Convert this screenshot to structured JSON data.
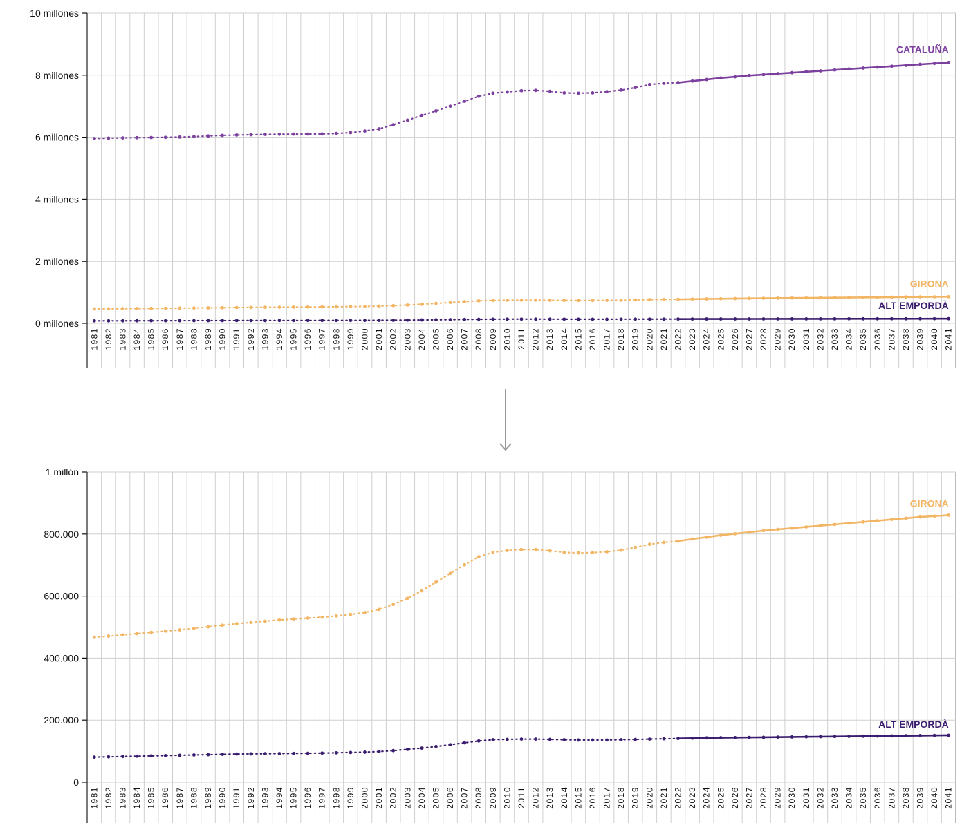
{
  "chart_data": [
    {
      "type": "line",
      "title": "",
      "xlabel": "",
      "ylabel": "",
      "ylim": [
        0,
        10000000
      ],
      "y_ticks": [
        {
          "value": 0,
          "label": "0 millones"
        },
        {
          "value": 2000000,
          "label": "2 millones"
        },
        {
          "value": 4000000,
          "label": "4 millones"
        },
        {
          "value": 6000000,
          "label": "6 millones"
        },
        {
          "value": 8000000,
          "label": "8 millones"
        },
        {
          "value": 10000000,
          "label": "10 millones"
        }
      ],
      "grid": true,
      "x_tick_labels": [
        "1981",
        "1982",
        "1983",
        "1984",
        "1985",
        "1986",
        "1987",
        "1988",
        "1989",
        "1990",
        "1991",
        "1992",
        "1993",
        "1994",
        "1995",
        "1996",
        "1997",
        "1998",
        "1999",
        "2000",
        "2001",
        "2002",
        "2003",
        "2004",
        "2005",
        "2006",
        "2007",
        "2008",
        "2009",
        "2010",
        "2011",
        "2012",
        "2013",
        "2014",
        "2015",
        "2016",
        "2017",
        "2018",
        "2019",
        "2020",
        "2021",
        "2022",
        "2023",
        "2024",
        "2025",
        "2026",
        "2027",
        "2028",
        "2029",
        "2030",
        "2031",
        "2032",
        "2033",
        "2034",
        "2035",
        "2036",
        "2037",
        "2038",
        "2039",
        "2040",
        "2041"
      ],
      "projection_start": 2022,
      "series": [
        {
          "name": "CATALUÑA",
          "color": "#7b3f9e",
          "x": [
            1981,
            1982,
            1983,
            1984,
            1985,
            1986,
            1987,
            1988,
            1989,
            1990,
            1991,
            1992,
            1993,
            1994,
            1995,
            1996,
            1997,
            1998,
            1999,
            2000,
            2001,
            2002,
            2003,
            2004,
            2005,
            2006,
            2007,
            2008,
            2009,
            2010,
            2011,
            2012,
            2013,
            2014,
            2015,
            2016,
            2017,
            2018,
            2019,
            2020,
            2021,
            2022,
            2023,
            2024,
            2025,
            2026,
            2027,
            2028,
            2029,
            2030,
            2031,
            2032,
            2033,
            2034,
            2035,
            2036,
            2037,
            2038,
            2039,
            2040,
            2041
          ],
          "values": [
            5956000,
            5970000,
            5978000,
            5985000,
            5990000,
            5995000,
            6005000,
            6020000,
            6040000,
            6059000,
            6070000,
            6080000,
            6090000,
            6095000,
            6100000,
            6102000,
            6105000,
            6120000,
            6147000,
            6200000,
            6270000,
            6400000,
            6550000,
            6700000,
            6850000,
            7000000,
            7160000,
            7320000,
            7420000,
            7460000,
            7500000,
            7510000,
            7480000,
            7430000,
            7420000,
            7430000,
            7470000,
            7520000,
            7600000,
            7700000,
            7740000,
            7760000,
            7810000,
            7860000,
            7910000,
            7950000,
            7990000,
            8020000,
            8050000,
            8080000,
            8110000,
            8140000,
            8170000,
            8200000,
            8230000,
            8260000,
            8290000,
            8320000,
            8350000,
            8380000,
            8410000
          ]
        },
        {
          "name": "GIRONA",
          "color": "#f2b563",
          "x": [
            1981,
            1982,
            1983,
            1984,
            1985,
            1986,
            1987,
            1988,
            1989,
            1990,
            1991,
            1992,
            1993,
            1994,
            1995,
            1996,
            1997,
            1998,
            1999,
            2000,
            2001,
            2002,
            2003,
            2004,
            2005,
            2006,
            2007,
            2008,
            2009,
            2010,
            2011,
            2012,
            2013,
            2014,
            2015,
            2016,
            2017,
            2018,
            2019,
            2020,
            2021,
            2022,
            2023,
            2024,
            2025,
            2026,
            2027,
            2028,
            2029,
            2030,
            2031,
            2032,
            2033,
            2034,
            2035,
            2036,
            2037,
            2038,
            2039,
            2040,
            2041
          ],
          "values": [
            467000,
            471000,
            475000,
            479000,
            483000,
            487000,
            491000,
            496000,
            501000,
            506000,
            511000,
            515000,
            519000,
            523000,
            526000,
            529000,
            532000,
            536000,
            541000,
            547000,
            557000,
            573000,
            593000,
            617000,
            645000,
            673000,
            701000,
            727000,
            741000,
            747000,
            750000,
            750000,
            746000,
            741000,
            739000,
            740000,
            743000,
            748000,
            757000,
            767000,
            773000,
            777000,
            784000,
            790000,
            796000,
            801000,
            806000,
            811000,
            815000,
            819000,
            823000,
            827000,
            831000,
            835000,
            839000,
            843000,
            847000,
            851000,
            855000,
            858000,
            861000
          ]
        },
        {
          "name": "ALT EMPORDÀ",
          "color": "#3a1d6e",
          "x": [
            1981,
            1982,
            1983,
            1984,
            1985,
            1986,
            1987,
            1988,
            1989,
            1990,
            1991,
            1992,
            1993,
            1994,
            1995,
            1996,
            1997,
            1998,
            1999,
            2000,
            2001,
            2002,
            2003,
            2004,
            2005,
            2006,
            2007,
            2008,
            2009,
            2010,
            2011,
            2012,
            2013,
            2014,
            2015,
            2016,
            2017,
            2018,
            2019,
            2020,
            2021,
            2022,
            2023,
            2024,
            2025,
            2026,
            2027,
            2028,
            2029,
            2030,
            2031,
            2032,
            2033,
            2034,
            2035,
            2036,
            2037,
            2038,
            2039,
            2040,
            2041
          ],
          "values": [
            81000,
            82000,
            83000,
            84000,
            85000,
            86000,
            87000,
            88000,
            89000,
            90000,
            91000,
            91500,
            92000,
            92500,
            93000,
            93500,
            94000,
            95000,
            96000,
            97000,
            99000,
            102000,
            106000,
            110000,
            115000,
            121000,
            127000,
            133000,
            137000,
            138000,
            139000,
            139000,
            138000,
            137000,
            136000,
            136000,
            136000,
            137000,
            138000,
            139000,
            140000,
            141000,
            142000,
            143000,
            143500,
            144000,
            144500,
            145000,
            145500,
            146000,
            146500,
            147000,
            147500,
            148000,
            148500,
            149000,
            149500,
            150000,
            150500,
            151000,
            151500
          ]
        }
      ]
    },
    {
      "type": "line",
      "title": "",
      "xlabel": "",
      "ylabel": "",
      "ylim": [
        0,
        1000000
      ],
      "y_ticks": [
        {
          "value": 0,
          "label": "0"
        },
        {
          "value": 200000,
          "label": "200.000"
        },
        {
          "value": 400000,
          "label": "400.000"
        },
        {
          "value": 600000,
          "label": "600.000"
        },
        {
          "value": 800000,
          "label": "800.000"
        },
        {
          "value": 1000000,
          "label": "1 millón"
        }
      ],
      "grid": true,
      "x_tick_labels": [
        "1981",
        "1982",
        "1983",
        "1984",
        "1985",
        "1986",
        "1987",
        "1988",
        "1989",
        "1990",
        "1991",
        "1992",
        "1993",
        "1994",
        "1995",
        "1996",
        "1997",
        "1998",
        "1999",
        "2000",
        "2001",
        "2002",
        "2003",
        "2004",
        "2005",
        "2006",
        "2007",
        "2008",
        "2009",
        "2010",
        "2011",
        "2012",
        "2013",
        "2014",
        "2015",
        "2016",
        "2017",
        "2018",
        "2019",
        "2020",
        "2021",
        "2022",
        "2023",
        "2024",
        "2025",
        "2026",
        "2027",
        "2028",
        "2029",
        "2030",
        "2031",
        "2032",
        "2033",
        "2034",
        "2035",
        "2036",
        "2037",
        "2038",
        "2039",
        "2040",
        "2041"
      ],
      "projection_start": 2022,
      "series": [
        {
          "name": "GIRONA",
          "color": "#f2b563",
          "x": [
            1981,
            1982,
            1983,
            1984,
            1985,
            1986,
            1987,
            1988,
            1989,
            1990,
            1991,
            1992,
            1993,
            1994,
            1995,
            1996,
            1997,
            1998,
            1999,
            2000,
            2001,
            2002,
            2003,
            2004,
            2005,
            2006,
            2007,
            2008,
            2009,
            2010,
            2011,
            2012,
            2013,
            2014,
            2015,
            2016,
            2017,
            2018,
            2019,
            2020,
            2021,
            2022,
            2023,
            2024,
            2025,
            2026,
            2027,
            2028,
            2029,
            2030,
            2031,
            2032,
            2033,
            2034,
            2035,
            2036,
            2037,
            2038,
            2039,
            2040,
            2041
          ],
          "values": [
            467000,
            471000,
            475000,
            479000,
            483000,
            487000,
            491000,
            496000,
            501000,
            506000,
            511000,
            515000,
            519000,
            523000,
            526000,
            529000,
            532000,
            536000,
            541000,
            547000,
            557000,
            573000,
            593000,
            617000,
            645000,
            673000,
            701000,
            727000,
            741000,
            747000,
            750000,
            750000,
            746000,
            741000,
            739000,
            740000,
            743000,
            748000,
            757000,
            767000,
            773000,
            777000,
            784000,
            790000,
            796000,
            801000,
            806000,
            811000,
            815000,
            819000,
            823000,
            827000,
            831000,
            835000,
            839000,
            843000,
            847000,
            851000,
            855000,
            858000,
            861000
          ]
        },
        {
          "name": "ALT EMPORDÀ",
          "color": "#3a1d6e",
          "x": [
            1981,
            1982,
            1983,
            1984,
            1985,
            1986,
            1987,
            1988,
            1989,
            1990,
            1991,
            1992,
            1993,
            1994,
            1995,
            1996,
            1997,
            1998,
            1999,
            2000,
            2001,
            2002,
            2003,
            2004,
            2005,
            2006,
            2007,
            2008,
            2009,
            2010,
            2011,
            2012,
            2013,
            2014,
            2015,
            2016,
            2017,
            2018,
            2019,
            2020,
            2021,
            2022,
            2023,
            2024,
            2025,
            2026,
            2027,
            2028,
            2029,
            2030,
            2031,
            2032,
            2033,
            2034,
            2035,
            2036,
            2037,
            2038,
            2039,
            2040,
            2041
          ],
          "values": [
            81000,
            82000,
            83000,
            84000,
            85000,
            86000,
            87000,
            88000,
            89000,
            90000,
            91000,
            91500,
            92000,
            92500,
            93000,
            93500,
            94000,
            95000,
            96000,
            97000,
            99000,
            102000,
            106000,
            110000,
            115000,
            121000,
            127000,
            133000,
            137000,
            138000,
            139000,
            139000,
            138000,
            137000,
            136000,
            136000,
            136000,
            137000,
            138000,
            139000,
            140000,
            141000,
            142000,
            143000,
            143500,
            144000,
            144500,
            145000,
            145500,
            146000,
            146500,
            147000,
            147500,
            148000,
            148500,
            149000,
            149500,
            150000,
            150500,
            151000,
            151500
          ]
        }
      ]
    }
  ],
  "connector": {
    "icon": "arrow-down-icon",
    "color": "#999999"
  }
}
